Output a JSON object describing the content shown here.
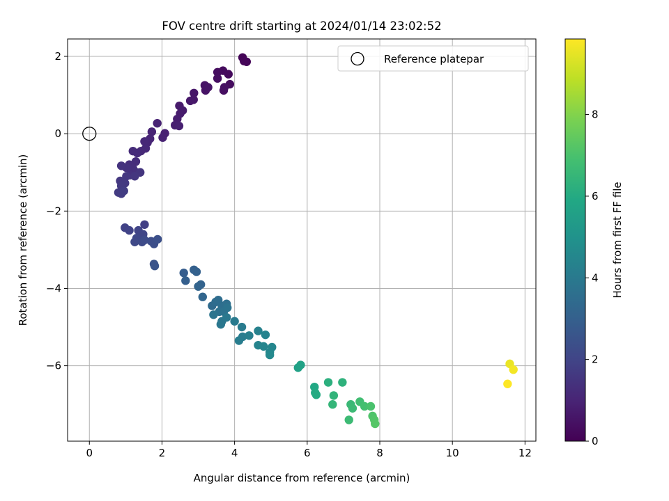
{
  "chart_data": {
    "type": "scatter",
    "title": "FOV centre drift starting at 2024/01/14 23:02:52",
    "xlabel": "Angular distance from reference (arcmin)",
    "ylabel": "Rotation from reference (arcmin)",
    "xlim": [
      -0.6,
      12.3
    ],
    "ylim": [
      -7.95,
      2.45
    ],
    "xticks": [
      0,
      2,
      4,
      6,
      8,
      10,
      12
    ],
    "yticks": [
      -6,
      -4,
      -2,
      0,
      2
    ],
    "grid": true,
    "legend": {
      "placement": "upper right",
      "entries": [
        {
          "label": "Reference platepar",
          "marker": "open-circle",
          "x": 0,
          "y": 0
        }
      ]
    },
    "colorbar": {
      "label": "Hours from first FF file",
      "colormap": "viridis",
      "range": [
        0,
        9.85
      ],
      "ticks": [
        0,
        2,
        4,
        6,
        8
      ]
    },
    "points": [
      [
        4.22,
        1.97,
        0.1
      ],
      [
        4.33,
        1.86,
        0.12
      ],
      [
        4.26,
        1.88,
        0.14
      ],
      [
        3.83,
        1.54,
        0.25
      ],
      [
        3.68,
        1.63,
        0.27
      ],
      [
        3.87,
        1.28,
        0.3
      ],
      [
        3.53,
        1.59,
        0.33
      ],
      [
        3.53,
        1.43,
        0.36
      ],
      [
        3.7,
        1.12,
        0.4
      ],
      [
        3.72,
        1.2,
        0.42
      ],
      [
        3.18,
        1.25,
        0.5
      ],
      [
        3.2,
        1.12,
        0.52
      ],
      [
        3.27,
        1.2,
        0.55
      ],
      [
        2.88,
        1.05,
        0.6
      ],
      [
        2.87,
        0.88,
        0.63
      ],
      [
        2.78,
        0.85,
        0.66
      ],
      [
        2.48,
        0.72,
        0.7
      ],
      [
        2.57,
        0.6,
        0.73
      ],
      [
        2.5,
        0.52,
        0.76
      ],
      [
        2.42,
        0.38,
        0.8
      ],
      [
        2.36,
        0.22,
        0.83
      ],
      [
        2.47,
        0.2,
        0.86
      ],
      [
        2.08,
        0.01,
        0.9
      ],
      [
        2.02,
        -0.1,
        0.93
      ],
      [
        1.87,
        0.27,
        0.96
      ],
      [
        1.72,
        0.05,
        1.0
      ],
      [
        1.67,
        -0.13,
        1.03
      ],
      [
        1.6,
        -0.23,
        1.06
      ],
      [
        1.52,
        -0.2,
        1.1
      ],
      [
        1.55,
        -0.38,
        1.13
      ],
      [
        1.42,
        -0.45,
        1.16
      ],
      [
        1.32,
        -0.5,
        1.2
      ],
      [
        1.2,
        -0.45,
        1.23
      ],
      [
        1.28,
        -0.72,
        1.26
      ],
      [
        1.1,
        -0.8,
        1.3
      ],
      [
        1.2,
        -0.9,
        1.33
      ],
      [
        1.3,
        -1.0,
        1.36
      ],
      [
        1.12,
        -1.07,
        1.4
      ],
      [
        1.02,
        -0.88,
        1.43
      ],
      [
        0.88,
        -0.83,
        1.46
      ],
      [
        1.4,
        -1.0,
        1.5
      ],
      [
        1.25,
        -1.1,
        1.53
      ],
      [
        1.02,
        -1.1,
        1.56
      ],
      [
        0.85,
        -1.22,
        1.6
      ],
      [
        0.98,
        -1.28,
        1.63
      ],
      [
        0.88,
        -1.35,
        1.66
      ],
      [
        0.8,
        -1.52,
        1.7
      ],
      [
        0.88,
        -1.55,
        1.73
      ],
      [
        0.95,
        -1.48,
        1.76
      ],
      [
        1.52,
        -2.35,
        1.85
      ],
      [
        0.98,
        -2.43,
        1.9
      ],
      [
        1.1,
        -2.5,
        1.95
      ],
      [
        1.35,
        -2.5,
        2.0
      ],
      [
        1.48,
        -2.6,
        2.05
      ],
      [
        1.3,
        -2.7,
        2.1
      ],
      [
        1.25,
        -2.8,
        2.15
      ],
      [
        1.45,
        -2.8,
        2.2
      ],
      [
        1.52,
        -2.75,
        2.25
      ],
      [
        1.7,
        -2.78,
        2.3
      ],
      [
        1.78,
        -2.85,
        2.35
      ],
      [
        1.88,
        -2.73,
        2.4
      ],
      [
        1.78,
        -3.37,
        2.5
      ],
      [
        1.8,
        -3.42,
        2.55
      ],
      [
        2.6,
        -3.6,
        2.9
      ],
      [
        2.65,
        -3.8,
        2.95
      ],
      [
        2.88,
        -3.52,
        3.0
      ],
      [
        2.95,
        -3.57,
        3.05
      ],
      [
        3.07,
        -3.9,
        3.1
      ],
      [
        3.0,
        -3.95,
        3.15
      ],
      [
        3.12,
        -4.22,
        3.25
      ],
      [
        3.38,
        -4.45,
        3.4
      ],
      [
        3.48,
        -4.35,
        3.45
      ],
      [
        3.55,
        -4.3,
        3.5
      ],
      [
        3.65,
        -4.45,
        3.55
      ],
      [
        3.78,
        -4.4,
        3.6
      ],
      [
        3.58,
        -4.6,
        3.65
      ],
      [
        3.7,
        -4.6,
        3.7
      ],
      [
        3.8,
        -4.5,
        3.75
      ],
      [
        3.42,
        -4.68,
        3.8
      ],
      [
        3.65,
        -4.85,
        3.85
      ],
      [
        3.62,
        -4.93,
        3.9
      ],
      [
        3.78,
        -4.75,
        3.95
      ],
      [
        4.0,
        -4.85,
        4.0
      ],
      [
        4.2,
        -5.0,
        4.05
      ],
      [
        4.22,
        -5.25,
        4.1
      ],
      [
        4.12,
        -5.35,
        4.15
      ],
      [
        4.4,
        -5.22,
        4.2
      ],
      [
        4.65,
        -5.1,
        4.3
      ],
      [
        4.85,
        -5.2,
        4.35
      ],
      [
        4.65,
        -5.47,
        4.4
      ],
      [
        4.8,
        -5.5,
        4.45
      ],
      [
        5.03,
        -5.52,
        4.5
      ],
      [
        4.97,
        -5.65,
        4.55
      ],
      [
        4.97,
        -5.72,
        4.6
      ],
      [
        5.75,
        -6.05,
        5.6
      ],
      [
        5.82,
        -5.98,
        5.65
      ],
      [
        6.2,
        -6.55,
        5.9
      ],
      [
        6.22,
        -6.7,
        5.95
      ],
      [
        6.25,
        -6.75,
        6.0
      ],
      [
        6.58,
        -6.43,
        6.2
      ],
      [
        6.97,
        -6.43,
        6.3
      ],
      [
        6.73,
        -6.77,
        6.4
      ],
      [
        6.7,
        -7.0,
        6.45
      ],
      [
        7.2,
        -7.0,
        6.6
      ],
      [
        7.25,
        -7.1,
        6.65
      ],
      [
        7.15,
        -7.4,
        6.7
      ],
      [
        7.45,
        -6.93,
        6.8
      ],
      [
        7.58,
        -7.05,
        6.9
      ],
      [
        7.75,
        -7.05,
        7.0
      ],
      [
        7.8,
        -7.3,
        7.1
      ],
      [
        7.85,
        -7.4,
        7.15
      ],
      [
        7.87,
        -7.5,
        7.2
      ],
      [
        11.58,
        -5.95,
        9.55
      ],
      [
        11.68,
        -6.1,
        9.7
      ],
      [
        11.52,
        -6.47,
        9.85
      ]
    ]
  }
}
